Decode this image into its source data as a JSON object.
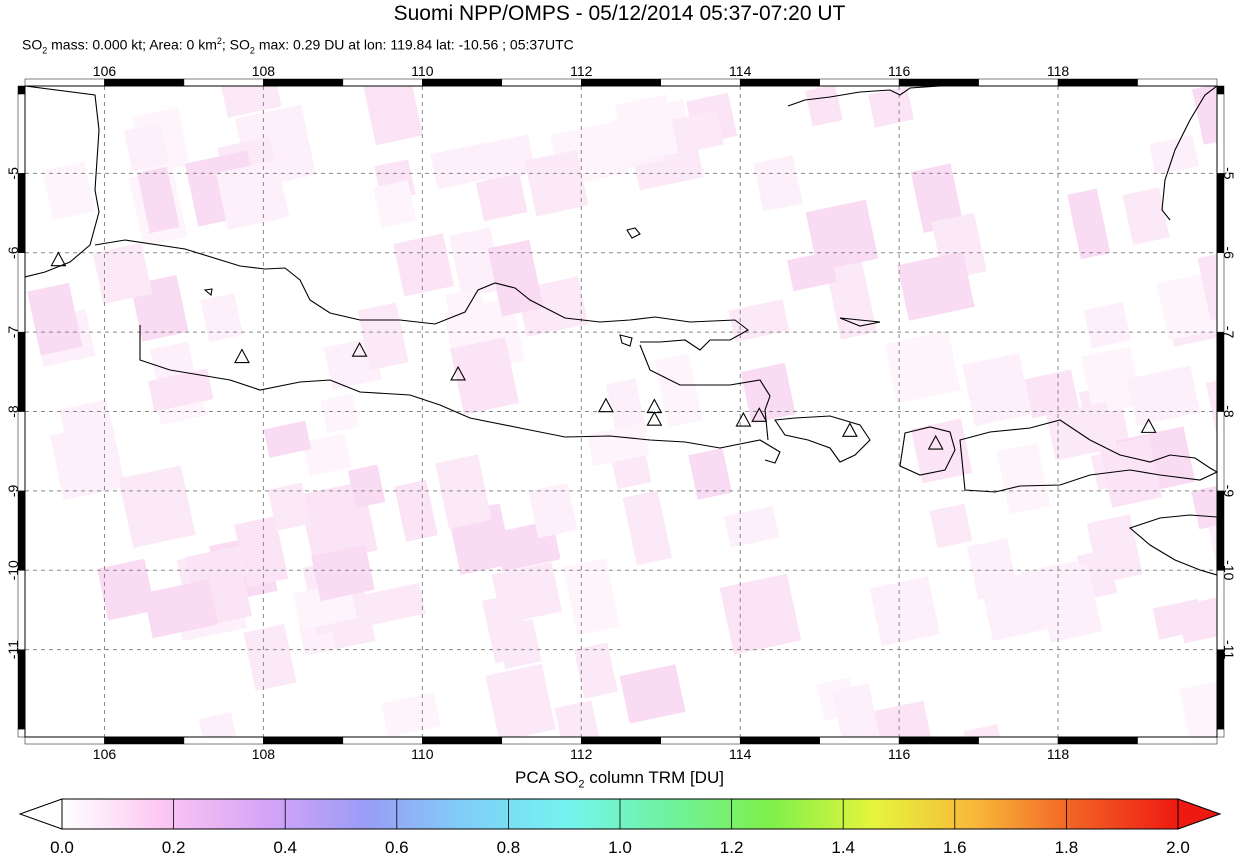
{
  "header": {
    "title": "Suomi NPP/OMPS - 05/12/2014 05:37-07:20 UT",
    "info": {
      "so2_mass_label": "SO",
      "so2_mass_sub": "2",
      "so2_mass_text": " mass: 0.000 kt; Area: 0 km",
      "area_sup": "2",
      "so2_max_prefix": "; SO",
      "so2_max_sub": "2",
      "so2_max_text": " max: 0.29 DU at lon: 119.84 lat: -10.56 ; 05:37UTC"
    }
  },
  "map": {
    "lon_ticks": [
      "106",
      "108",
      "110",
      "112",
      "114",
      "116",
      "118"
    ],
    "lat_ticks": [
      "-5",
      "-6",
      "-7",
      "-8",
      "-9",
      "-10",
      "-11"
    ],
    "lon_range": [
      105,
      120
    ],
    "lat_range": [
      -12.1,
      -3.9
    ],
    "volcanoes": [
      {
        "lon": 105.42,
        "lat": -6.1
      },
      {
        "lon": 107.73,
        "lat": -7.32
      },
      {
        "lon": 109.21,
        "lat": -7.24
      },
      {
        "lon": 110.45,
        "lat": -7.54
      },
      {
        "lon": 112.31,
        "lat": -7.94
      },
      {
        "lon": 112.92,
        "lat": -7.95
      },
      {
        "lon": 112.92,
        "lat": -8.11
      },
      {
        "lon": 114.04,
        "lat": -8.12
      },
      {
        "lon": 114.24,
        "lat": -8.06
      },
      {
        "lon": 115.38,
        "lat": -8.25
      },
      {
        "lon": 116.46,
        "lat": -8.41
      },
      {
        "lon": 119.14,
        "lat": -8.2
      }
    ]
  },
  "colorbar": {
    "title_prefix": "PCA SO",
    "title_sub": "2",
    "title_suffix": " column TRM [DU]",
    "ticks": [
      "0.0",
      "0.2",
      "0.4",
      "0.6",
      "0.8",
      "1.0",
      "1.2",
      "1.4",
      "1.6",
      "1.8",
      "2.0"
    ],
    "colors": [
      "#ffffff",
      "#fbc6f2",
      "#d7a4f7",
      "#9a9cf6",
      "#7fd0f8",
      "#74f4ee",
      "#6ff29d",
      "#7ff04a",
      "#e6f53d",
      "#f8b83a",
      "#f26024",
      "#ee1a12"
    ]
  }
}
